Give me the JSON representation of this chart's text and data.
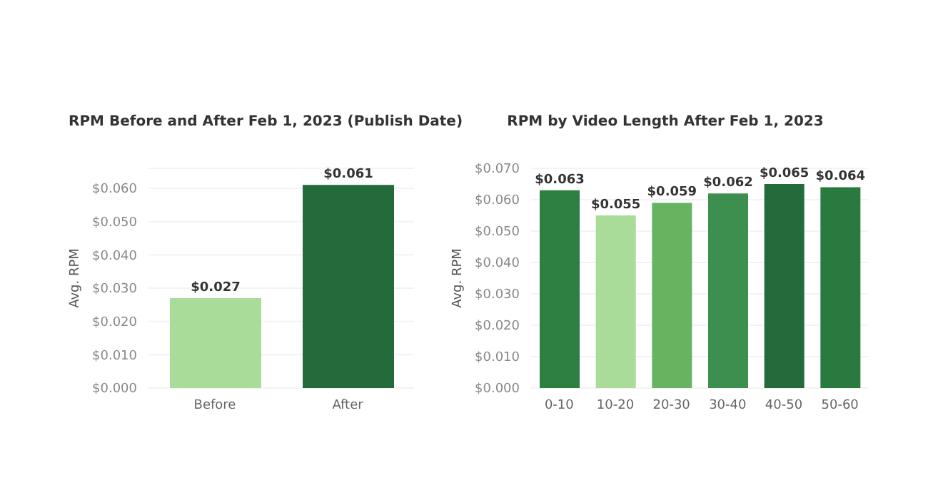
{
  "chart_data": [
    {
      "type": "bar",
      "title": "RPM Before and After Feb 1, 2023 (Publish Date)",
      "ylabel": "Avg. RPM",
      "categories": [
        "Before",
        "After"
      ],
      "values": [
        0.027,
        0.061
      ],
      "colors": [
        "#a8dc98",
        "#246b3c"
      ],
      "value_labels": [
        "$0.027",
        "$0.061"
      ],
      "ylim": [
        0,
        0.066
      ],
      "yticks": [
        {
          "value": 0,
          "label": "$0.000"
        },
        {
          "value": 0.01,
          "label": "$0.010"
        },
        {
          "value": 0.02,
          "label": "$0.020"
        },
        {
          "value": 0.03,
          "label": "$0.030"
        },
        {
          "value": 0.04,
          "label": "$0.040"
        },
        {
          "value": 0.05,
          "label": "$0.050"
        },
        {
          "value": 0.06,
          "label": "$0.060"
        }
      ],
      "grid": "y"
    },
    {
      "type": "bar",
      "title": "RPM by Video Length After Feb 1, 2023",
      "ylabel": "Avg. RPM",
      "categories": [
        "0-10",
        "10-20",
        "20-30",
        "30-40",
        "40-50",
        "50-60"
      ],
      "values": [
        0.063,
        0.055,
        0.059,
        0.062,
        0.065,
        0.064
      ],
      "colors": [
        "#2d7f42",
        "#a8dc98",
        "#66b360",
        "#3c8f4e",
        "#246b3c",
        "#2a7a40"
      ],
      "value_labels": [
        "$0.063",
        "$0.055",
        "$0.059",
        "$0.062",
        "$0.065",
        "$0.064"
      ],
      "ylim": [
        0,
        0.07
      ],
      "yticks": [
        {
          "value": 0,
          "label": "$0.000"
        },
        {
          "value": 0.01,
          "label": "$0.010"
        },
        {
          "value": 0.02,
          "label": "$0.020"
        },
        {
          "value": 0.03,
          "label": "$0.030"
        },
        {
          "value": 0.04,
          "label": "$0.040"
        },
        {
          "value": 0.05,
          "label": "$0.050"
        },
        {
          "value": 0.06,
          "label": "$0.060"
        },
        {
          "value": 0.07,
          "label": "$0.070"
        }
      ],
      "grid": "y"
    }
  ]
}
